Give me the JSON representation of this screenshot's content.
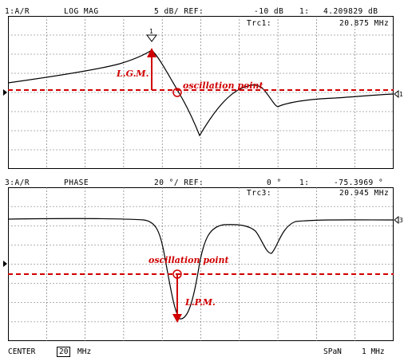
{
  "top": {
    "channel": "1:A/R",
    "format": "LOG MAG",
    "scale": "5 dB/ REF:",
    "ref_value": "-10 dB",
    "marker_num": "1:",
    "marker_value": "4.209829 dB",
    "marker_label": "Trc1:",
    "marker_freq": "20.875 MHz",
    "marker_flag": "1",
    "annot_gm": "L.G.M.",
    "annot_osc": "oscillation point",
    "right_ref": "1"
  },
  "bottom": {
    "channel": "3:A/R",
    "format": "PHASE",
    "scale": "20 °/ REF:",
    "ref_value": "0 °",
    "marker_num": "1:",
    "marker_value": "-75.3969 °",
    "marker_label": "Trc3:",
    "marker_freq": "20.945 MHz",
    "annot_pm": "L.P.M.",
    "annot_osc": "oscillation point",
    "right_ref": "3"
  },
  "footer": {
    "center_label": "CENTER",
    "center_value": "20",
    "center_unit": "MHz",
    "span_label": "SPaN",
    "span_value": "1 MHz"
  },
  "colors": {
    "annotation": "#d00000",
    "trace": "#000000",
    "grid": "#666666"
  }
}
